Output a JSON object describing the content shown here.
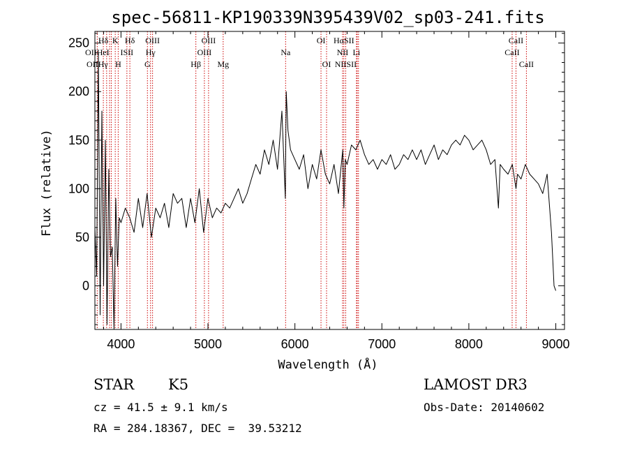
{
  "chart_data": {
    "type": "line",
    "title": "spec-56811-KP190339N395439V02_sp03-241.fits",
    "xlabel": "Wavelength (Å)",
    "ylabel": "Flux (relative)",
    "xlim": [
      3700,
      9100
    ],
    "ylim": [
      -45,
      262
    ],
    "x_ticks": [
      4000,
      5000,
      6000,
      7000,
      8000,
      9000
    ],
    "y_ticks": [
      0,
      50,
      100,
      150,
      200,
      250
    ],
    "x_tick_labels": [
      "4000",
      "5000",
      "6000",
      "7000",
      "8000",
      "9000"
    ],
    "y_tick_labels": [
      "0",
      "50",
      "100",
      "150",
      "200",
      "250"
    ],
    "series": [
      {
        "name": "flux",
        "x": [
          3700,
          3720,
          3740,
          3760,
          3780,
          3800,
          3820,
          3840,
          3860,
          3880,
          3900,
          3920,
          3940,
          3960,
          3980,
          4000,
          4050,
          4100,
          4150,
          4200,
          4250,
          4300,
          4350,
          4400,
          4450,
          4500,
          4550,
          4600,
          4650,
          4700,
          4750,
          4800,
          4850,
          4900,
          4950,
          5000,
          5050,
          5100,
          5150,
          5200,
          5250,
          5300,
          5350,
          5400,
          5450,
          5500,
          5550,
          5600,
          5650,
          5700,
          5750,
          5800,
          5850,
          5890,
          5900,
          5920,
          5950,
          6000,
          6050,
          6100,
          6150,
          6200,
          6250,
          6300,
          6350,
          6400,
          6450,
          6500,
          6550,
          6563,
          6580,
          6600,
          6650,
          6700,
          6750,
          6800,
          6850,
          6900,
          6950,
          7000,
          7050,
          7100,
          7150,
          7200,
          7250,
          7300,
          7350,
          7400,
          7450,
          7500,
          7550,
          7600,
          7650,
          7700,
          7750,
          7800,
          7850,
          7900,
          7950,
          8000,
          8050,
          8100,
          8150,
          8200,
          8250,
          8300,
          8340,
          8360,
          8400,
          8450,
          8500,
          8542,
          8560,
          8600,
          8650,
          8700,
          8750,
          8800,
          8850,
          8900,
          8950,
          8980,
          9000
        ],
        "values": [
          60,
          10,
          240,
          -30,
          180,
          0,
          150,
          -40,
          120,
          30,
          40,
          -45,
          90,
          20,
          70,
          65,
          80,
          70,
          55,
          90,
          60,
          95,
          50,
          80,
          70,
          85,
          60,
          95,
          85,
          90,
          60,
          90,
          65,
          100,
          55,
          90,
          70,
          80,
          75,
          85,
          80,
          90,
          100,
          85,
          95,
          110,
          125,
          115,
          140,
          125,
          150,
          120,
          180,
          90,
          200,
          160,
          140,
          130,
          120,
          135,
          100,
          125,
          110,
          140,
          115,
          105,
          125,
          95,
          140,
          80,
          130,
          125,
          145,
          140,
          150,
          135,
          125,
          130,
          120,
          130,
          125,
          135,
          120,
          125,
          135,
          130,
          140,
          130,
          140,
          125,
          135,
          145,
          130,
          140,
          135,
          145,
          150,
          145,
          155,
          150,
          140,
          145,
          150,
          140,
          125,
          130,
          80,
          125,
          120,
          115,
          125,
          100,
          115,
          110,
          125,
          115,
          110,
          105,
          95,
          115,
          55,
          0,
          -5
        ]
      }
    ],
    "line_markers": [
      {
        "label": "Hδ",
        "wavelength": 3797,
        "row": 0
      },
      {
        "label": "K",
        "wavelength": 3934,
        "row": 0
      },
      {
        "label": "Hδ",
        "wavelength": 4102,
        "row": 0
      },
      {
        "label": "OIII",
        "wavelength": 4363,
        "row": 0
      },
      {
        "label": "OIII",
        "wavelength": 5007,
        "row": 0
      },
      {
        "label": "OI",
        "wavelength": 6300,
        "row": 0
      },
      {
        "label": "HαSII",
        "wavelength": 6563,
        "row": 0
      },
      {
        "label": "CaII",
        "wavelength": 8542,
        "row": 0
      },
      {
        "label": "OIIHeI",
        "wavelength": 3727,
        "row": 1
      },
      {
        "label": "ISII",
        "wavelength": 4068,
        "row": 1
      },
      {
        "label": "Hγ",
        "wavelength": 4340,
        "row": 1
      },
      {
        "label": "OIII",
        "wavelength": 4959,
        "row": 1
      },
      {
        "label": "Na",
        "wavelength": 5893,
        "row": 1
      },
      {
        "label": "NII",
        "wavelength": 6548,
        "row": 1
      },
      {
        "label": "Li",
        "wavelength": 6708,
        "row": 1
      },
      {
        "label": "CaII",
        "wavelength": 8498,
        "row": 1
      },
      {
        "label": "OIIHγ",
        "wavelength": 3727,
        "row": 2
      },
      {
        "label": "H",
        "wavelength": 3968,
        "row": 2
      },
      {
        "label": "G",
        "wavelength": 4304,
        "row": 2
      },
      {
        "label": "Hβ",
        "wavelength": 4861,
        "row": 2
      },
      {
        "label": "Mg",
        "wavelength": 5175,
        "row": 2
      },
      {
        "label": "OI",
        "wavelength": 6364,
        "row": 2
      },
      {
        "label": "NIISII",
        "wavelength": 6584,
        "row": 2
      },
      {
        "label": "CaII",
        "wavelength": 8662,
        "row": 2
      }
    ],
    "marker_lines": [
      3727,
      3797,
      3835,
      3869,
      3889,
      3934,
      3968,
      4068,
      4102,
      4304,
      4340,
      4363,
      4861,
      4959,
      5007,
      5175,
      5893,
      6300,
      6364,
      6548,
      6563,
      6584,
      6708,
      6716,
      6731,
      8498,
      8542,
      8662
    ],
    "marker_color": "#cc0000",
    "grid": false,
    "legend": "none"
  },
  "info": {
    "class": "STAR",
    "subclass": "K5",
    "cz": "cz = 41.5 ± 9.1 km/s",
    "radec": "RA = 284.18367, DEC =  39.53212",
    "survey": "LAMOST DR3",
    "obsdate": "Obs-Date: 20140602"
  }
}
